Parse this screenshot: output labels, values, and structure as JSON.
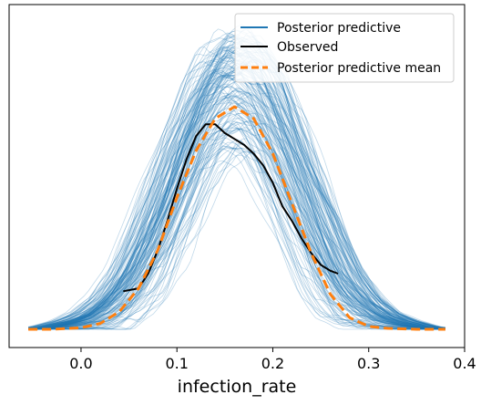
{
  "chart_data": {
    "type": "line",
    "xlabel": "infection_rate",
    "ylabel": "",
    "xlim": [
      -0.075,
      0.4
    ],
    "ylim": [
      0,
      1
    ],
    "x_ticks": [
      0.0,
      0.1,
      0.2,
      0.3,
      0.4
    ],
    "x_tick_labels": [
      "0.0",
      "0.1",
      "0.2",
      "0.3",
      "0.4"
    ],
    "y_ticks_shown": false,
    "grid": false,
    "legend_position": "top-right",
    "series": [
      {
        "name": "Posterior predictive",
        "style": "many thin translucent density curves",
        "color": "#1f77b4",
        "band": {
          "x": [
            -0.055,
            -0.04,
            -0.02,
            0.0,
            0.02,
            0.04,
            0.06,
            0.08,
            0.1,
            0.12,
            0.14,
            0.16,
            0.18,
            0.2,
            0.22,
            0.24,
            0.26,
            0.28,
            0.3,
            0.32,
            0.34,
            0.36,
            0.38
          ],
          "lower": [
            0.0,
            0.0,
            0.0,
            0.0,
            0.0,
            0.01,
            0.04,
            0.12,
            0.26,
            0.42,
            0.55,
            0.6,
            0.55,
            0.42,
            0.26,
            0.12,
            0.04,
            0.01,
            0.0,
            0.0,
            0.0,
            0.0,
            0.0
          ],
          "upper": [
            0.0,
            0.01,
            0.03,
            0.06,
            0.12,
            0.22,
            0.38,
            0.56,
            0.74,
            0.9,
            0.99,
            1.02,
            0.99,
            0.9,
            0.74,
            0.56,
            0.38,
            0.22,
            0.12,
            0.06,
            0.03,
            0.01,
            0.0
          ]
        }
      },
      {
        "name": "Observed",
        "color": "#000000",
        "x": [
          0.044,
          0.06,
          0.07,
          0.08,
          0.09,
          0.1,
          0.11,
          0.12,
          0.13,
          0.14,
          0.15,
          0.16,
          0.17,
          0.18,
          0.19,
          0.2,
          0.21,
          0.22,
          0.23,
          0.24,
          0.25,
          0.26,
          0.268
        ],
        "y": [
          0.13,
          0.14,
          0.19,
          0.27,
          0.37,
          0.48,
          0.58,
          0.66,
          0.7,
          0.7,
          0.67,
          0.65,
          0.63,
          0.6,
          0.56,
          0.5,
          0.42,
          0.37,
          0.31,
          0.26,
          0.22,
          0.2,
          0.19
        ]
      },
      {
        "name": "Posterior predictive mean",
        "color": "#ff7f0e",
        "dashed": true,
        "x": [
          -0.055,
          -0.03,
          0.0,
          0.02,
          0.04,
          0.06,
          0.08,
          0.1,
          0.12,
          0.14,
          0.16,
          0.18,
          0.2,
          0.22,
          0.24,
          0.26,
          0.28,
          0.3,
          0.32,
          0.35,
          0.38
        ],
        "y": [
          0.0,
          0.0,
          0.005,
          0.02,
          0.06,
          0.14,
          0.27,
          0.45,
          0.61,
          0.72,
          0.76,
          0.72,
          0.6,
          0.43,
          0.26,
          0.12,
          0.04,
          0.01,
          0.003,
          0.0,
          0.0
        ]
      }
    ]
  }
}
